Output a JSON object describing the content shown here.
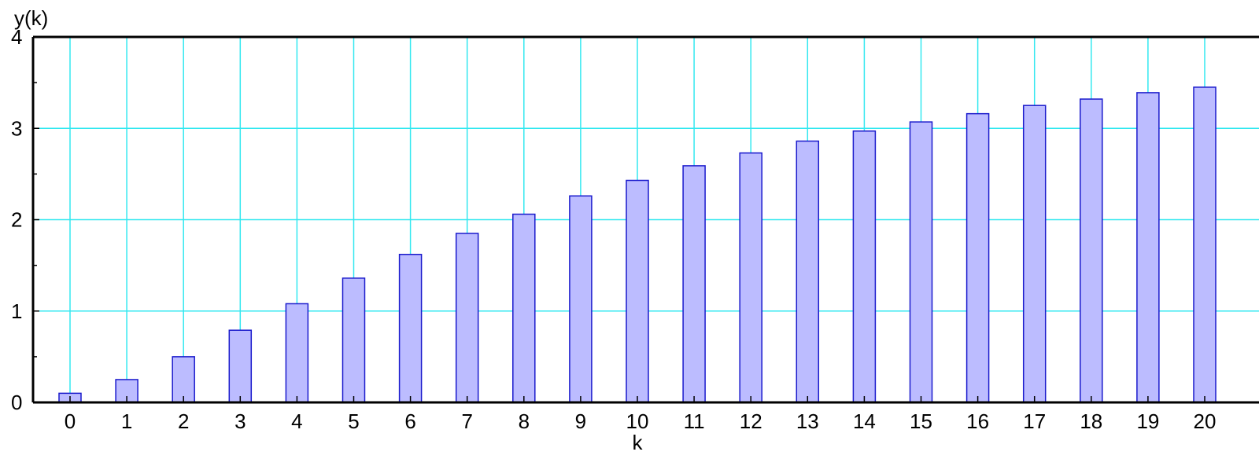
{
  "chart_data": {
    "type": "bar",
    "title": "",
    "xlabel": "k",
    "ylabel": "y(k)",
    "categories": [
      "0",
      "1",
      "2",
      "3",
      "4",
      "5",
      "6",
      "7",
      "8",
      "9",
      "10",
      "11",
      "12",
      "13",
      "14",
      "15",
      "16",
      "17",
      "18",
      "19",
      "20"
    ],
    "values": [
      0.1,
      0.25,
      0.5,
      0.79,
      1.08,
      1.36,
      1.62,
      1.85,
      2.06,
      2.26,
      2.43,
      2.59,
      2.73,
      2.86,
      2.97,
      3.07,
      3.16,
      3.25,
      3.32,
      3.39,
      3.45
    ],
    "ylim": [
      0,
      4
    ],
    "yticks": [
      0,
      1,
      2,
      3,
      4
    ],
    "grid": true,
    "colors": {
      "bar_fill": "#bcbcff",
      "bar_edge": "#1a1acc",
      "grid": "#33e8f0",
      "axis": "#000000"
    }
  }
}
